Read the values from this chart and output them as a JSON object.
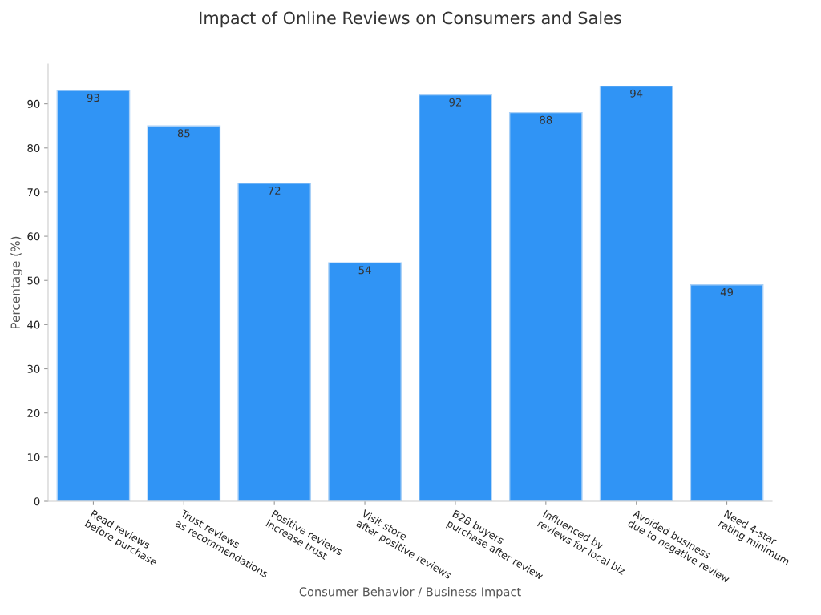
{
  "chart_data": {
    "type": "bar",
    "title": "Impact of Online Reviews on Consumers and Sales",
    "xlabel": "Consumer Behavior / Business Impact",
    "ylabel": "Percentage (%)",
    "categories": [
      "Read reviews\nbefore purchase",
      "Trust reviews\nas recommendations",
      "Positive reviews\nincrease trust",
      "Visit store\nafter positive reviews",
      "B2B buyers\npurchase after review",
      "Influenced by\nreviews for local biz",
      "Avoided business\ndue to negative review",
      "Need 4-star\nrating minimum"
    ],
    "values": [
      93,
      85,
      72,
      54,
      92,
      88,
      94,
      49
    ],
    "color": "#3094f5",
    "ylim": [
      0,
      99
    ],
    "yticks": [
      0,
      10,
      20,
      30,
      40,
      50,
      60,
      70,
      80,
      90
    ],
    "data_labels": true,
    "grid": false,
    "legend": false
  }
}
